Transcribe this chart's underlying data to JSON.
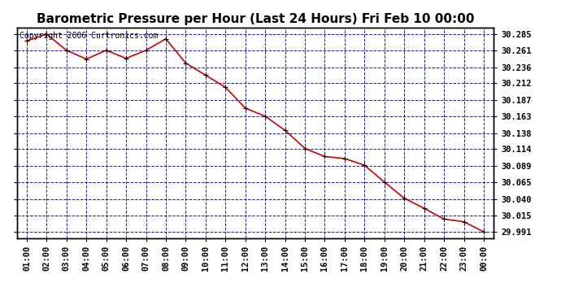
{
  "title": "Barometric Pressure per Hour (Last 24 Hours) Fri Feb 10 00:00",
  "copyright": "Copyright 2006 Curtronics.com",
  "background_color": "#ffffff",
  "plot_background": "#ffffff",
  "line_color": "#cc0000",
  "marker_color": "#000000",
  "grid_color": "#0000cc",
  "hours": [
    "01:00",
    "02:00",
    "03:00",
    "04:00",
    "05:00",
    "06:00",
    "07:00",
    "08:00",
    "09:00",
    "10:00",
    "11:00",
    "12:00",
    "13:00",
    "14:00",
    "15:00",
    "16:00",
    "17:00",
    "18:00",
    "19:00",
    "20:00",
    "21:00",
    "22:00",
    "23:00",
    "00:00"
  ],
  "pressure": [
    30.275,
    30.285,
    30.261,
    30.248,
    30.261,
    30.249,
    30.261,
    30.278,
    30.242,
    30.224,
    30.206,
    30.175,
    30.163,
    30.142,
    30.115,
    30.103,
    30.1,
    30.09,
    30.065,
    30.041,
    30.026,
    30.01,
    30.006,
    29.991
  ],
  "yticks": [
    29.991,
    30.015,
    30.04,
    30.065,
    30.089,
    30.114,
    30.138,
    30.163,
    30.187,
    30.212,
    30.236,
    30.261,
    30.285
  ],
  "ylim": [
    29.982,
    30.295
  ],
  "title_fontsize": 11,
  "tick_fontsize": 7.5,
  "copyright_fontsize": 7,
  "left_ytick_labels": [
    "",
    "",
    "",
    "",
    "",
    "",
    "",
    "",
    "",
    "",
    "",
    "",
    ""
  ]
}
